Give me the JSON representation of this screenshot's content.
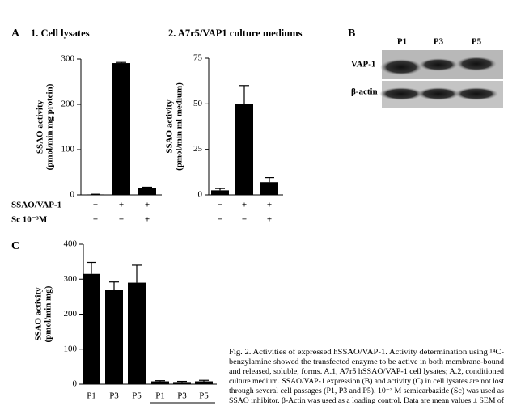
{
  "chart_data": [
    {
      "type": "bar",
      "panel": "A",
      "title": "1. Cell lysates",
      "y_label": [
        "SSAO activity",
        "(pmol/min mg protein)"
      ],
      "rows": [
        {
          "name": "SSAO/VAP-1",
          "labels": [
            "−",
            "+",
            "+"
          ]
        },
        {
          "name": "Sc 10⁻³M",
          "labels": [
            "−",
            "−",
            "+"
          ]
        }
      ],
      "values": [
        1,
        291,
        15
      ],
      "errors": [
        0.5,
        1.5,
        2
      ],
      "color": "#000000",
      "ylim": [
        0,
        300
      ],
      "yticks": [
        0,
        100,
        200,
        300
      ]
    },
    {
      "type": "bar",
      "title": "2. A7r5/VAP1 culture mediums",
      "y_label": [
        "SSAO activity",
        "(pmol/min ml medium)"
      ],
      "rows": [
        {
          "labels": [
            "−",
            "+",
            "+"
          ]
        },
        {
          "labels": [
            "−",
            "−",
            "+"
          ]
        }
      ],
      "values": [
        2.5,
        50,
        7
      ],
      "errors": [
        1,
        10,
        2.5
      ],
      "color": "#000000",
      "ylim": [
        0,
        75
      ],
      "yticks": [
        0,
        25,
        50,
        75
      ]
    },
    {
      "type": "bar",
      "panel": "C",
      "y_label": [
        "SSAO activity",
        "(pmol/min mg)"
      ],
      "categories": [
        "P1",
        "P3",
        "P5",
        "P1",
        "P3",
        "P5"
      ],
      "values": [
        315,
        270,
        290,
        8,
        6,
        8
      ],
      "errors": [
        33,
        22,
        50,
        2,
        2,
        3
      ],
      "color": "#000000",
      "ylim": [
        0,
        400
      ],
      "yticks": [
        0,
        100,
        200,
        300,
        400
      ]
    }
  ],
  "blot": {
    "panel": "B",
    "lanes": [
      "P1",
      "P3",
      "P5"
    ],
    "bands": [
      "VAP-1",
      "β-actin"
    ]
  },
  "caption": {
    "lines": [
      "Fig. 2. Activities of expressed hSSAO/VAP-1. Activity determination using ¹⁴C-",
      "benzylamine showed the transfected enzyme to be active in both membrane-bound",
      "and released, soluble, forms. A.1, A7r5 hSSAO/VAP-1 cell lysates; A.2, conditioned",
      "culture medium. SSAO/VAP-1 expression (B) and activity (C) in cell lysates are not lost",
      "through several cell passages (P1, P3 and P5). 10⁻³ M semicarbazide (Sc) was used as",
      "SSAO inhibitor. β-Actin was used as a loading control. Data are mean values ± SEM of"
    ]
  }
}
